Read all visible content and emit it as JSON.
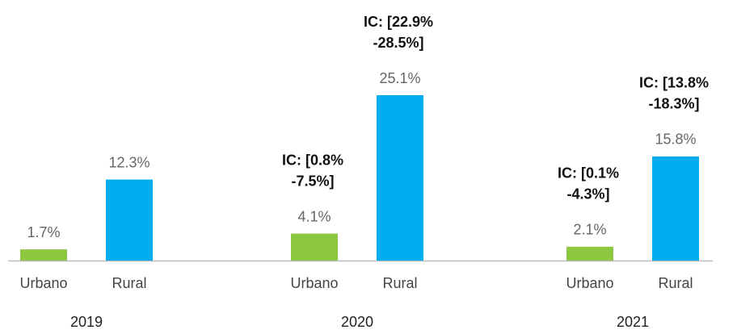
{
  "chart_data": {
    "type": "bar",
    "categories": [
      "2019",
      "2020",
      "2021"
    ],
    "series": [
      {
        "name": "Urbano",
        "color": "#8dc63f",
        "values": [
          1.7,
          4.1,
          2.1
        ],
        "value_labels": [
          "1.7%",
          "4.1%",
          "2.1%"
        ],
        "ci_labels": [
          null,
          [
            "IC: [0.8%",
            "-7.5%]"
          ],
          [
            "IC: [0.1%",
            "-4.3%]"
          ]
        ]
      },
      {
        "name": "Rural",
        "color": "#00aeef",
        "values": [
          12.3,
          25.1,
          15.8
        ],
        "value_labels": [
          "12.3%",
          "25.1%",
          "15.8%"
        ],
        "ci_labels": [
          null,
          [
            "IC: [22.9%",
            "-28.5%]"
          ],
          [
            "IC: [13.8%",
            "-18.3%]"
          ]
        ]
      }
    ]
  }
}
